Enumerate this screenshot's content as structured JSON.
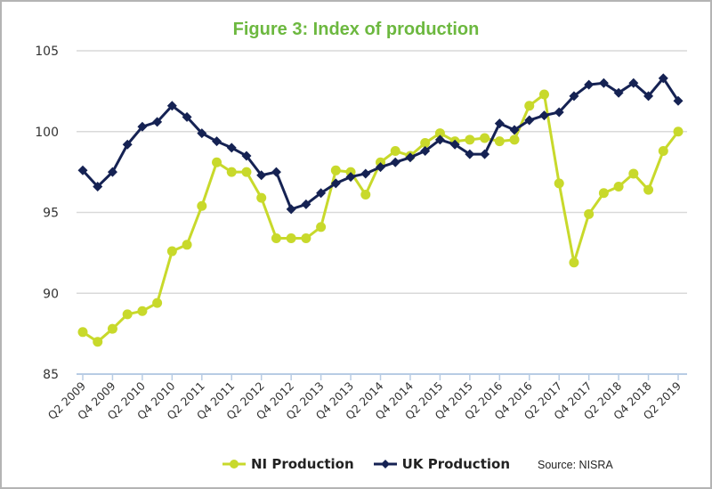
{
  "chart_data": {
    "type": "line",
    "title": "Figure 3: Index of production",
    "xlabel": "",
    "ylabel": "",
    "ylim": [
      85,
      105
    ],
    "yticks": [
      "85",
      "90",
      "95",
      "100",
      "105"
    ],
    "grid": true,
    "legend_position": "bottom",
    "source": "Source: NISRA",
    "x": [
      "Q2 2009",
      "Q3 2009",
      "Q4 2009",
      "Q1 2010",
      "Q2 2010",
      "Q3 2010",
      "Q4 2010",
      "Q1 2011",
      "Q2 2011",
      "Q3 2011",
      "Q4 2011",
      "Q1 2012",
      "Q2 2012",
      "Q3 2012",
      "Q4 2012",
      "Q1 2013",
      "Q2 2013",
      "Q3 2013",
      "Q4 2013",
      "Q1 2014",
      "Q2 2014",
      "Q3 2014",
      "Q4 2014",
      "Q1 2015",
      "Q2 2015",
      "Q3 2015",
      "Q4 2015",
      "Q1 2016",
      "Q2 2016",
      "Q3 2016",
      "Q4 2016",
      "Q1 2017",
      "Q2 2017",
      "Q3 2017",
      "Q4 2017",
      "Q1 2018",
      "Q2 2018",
      "Q3 2018",
      "Q4 2018",
      "Q1 2019",
      "Q2 2019"
    ],
    "series": [
      {
        "name": "NI Production",
        "color": "#c8d92b",
        "marker": "circle",
        "values": [
          87.6,
          87.0,
          87.8,
          88.7,
          88.9,
          89.4,
          92.6,
          93.0,
          95.4,
          98.1,
          97.5,
          97.5,
          95.9,
          93.4,
          93.4,
          93.4,
          94.1,
          97.6,
          97.5,
          96.1,
          98.1,
          98.8,
          98.5,
          99.3,
          99.9,
          99.4,
          99.5,
          99.6,
          99.4,
          99.5,
          101.6,
          102.3,
          96.8,
          91.9,
          94.9,
          96.2,
          96.6,
          97.4,
          96.4,
          98.8,
          100.0
        ]
      },
      {
        "name": "UK Production",
        "color": "#152253",
        "marker": "diamond",
        "values": [
          97.6,
          96.6,
          97.5,
          99.2,
          100.3,
          100.6,
          101.6,
          100.9,
          99.9,
          99.4,
          99.0,
          98.5,
          97.3,
          97.5,
          95.2,
          95.5,
          96.2,
          96.8,
          97.2,
          97.4,
          97.8,
          98.1,
          98.4,
          98.8,
          99.5,
          99.2,
          98.6,
          98.6,
          100.5,
          100.1,
          100.7,
          101.0,
          101.2,
          102.2,
          102.9,
          103.0,
          102.4,
          103.0,
          102.2,
          103.3,
          101.9
        ]
      }
    ]
  }
}
